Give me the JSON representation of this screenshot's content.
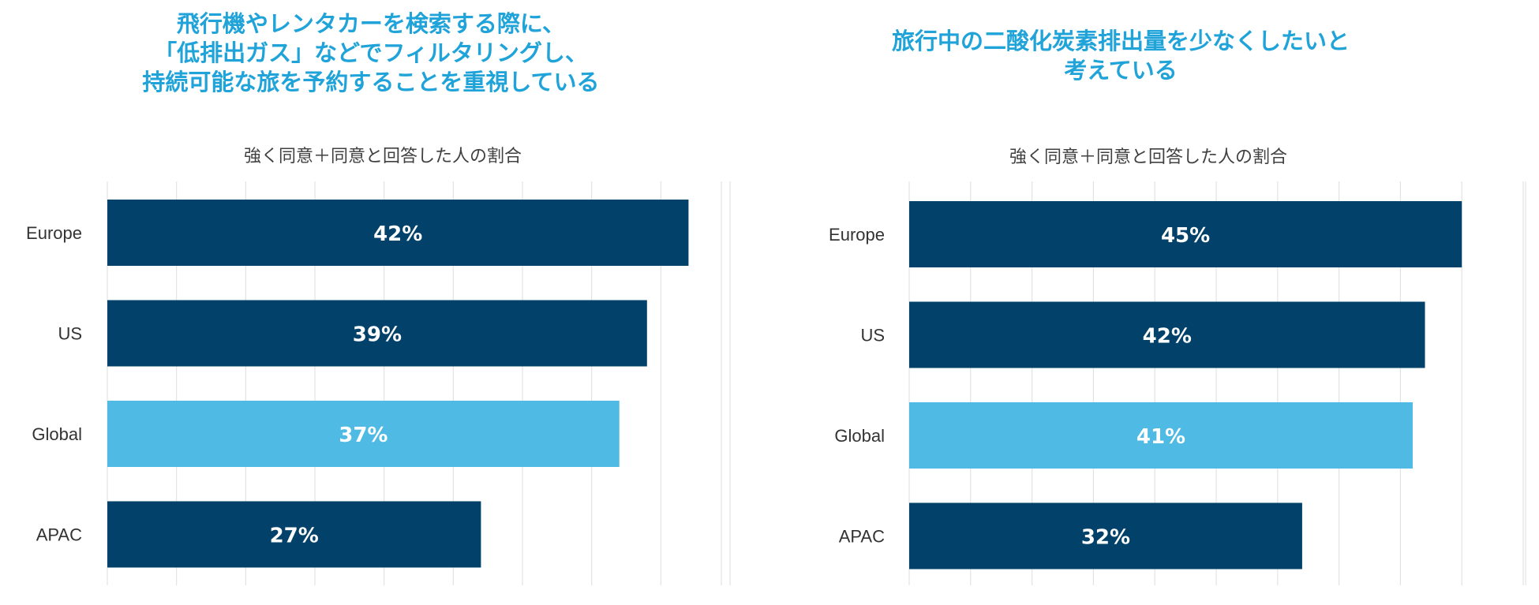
{
  "colors": {
    "title": "#1fa3d9",
    "bar_dark": "#02426a",
    "bar_highlight": "#4fbae4",
    "grid": "#e2e2e2",
    "text": "#333333"
  },
  "chart_data": [
    {
      "type": "bar",
      "orientation": "horizontal",
      "title_lines": [
        "飛行機やレンタカーを検索する際に、",
        "「低排出ガス」などでフィルタリングし、",
        "持続可能な旅を予約することを重視している"
      ],
      "subtitle": "強く同意＋同意と回答した人の割合",
      "categories": [
        "Europe",
        "US",
        "Global",
        "APAC"
      ],
      "values": [
        42,
        39,
        37,
        27
      ],
      "value_labels": [
        "42%",
        "39%",
        "37%",
        "27%"
      ],
      "highlight": "Global",
      "xlim": [
        0,
        45
      ],
      "grid": true
    },
    {
      "type": "bar",
      "orientation": "horizontal",
      "title_lines": [
        "旅行中の二酸化炭素排出量を少なくしたいと",
        "考えている"
      ],
      "subtitle": "強く同意＋同意と回答した人の割合",
      "categories": [
        "Europe",
        "US",
        "Global",
        "APAC"
      ],
      "values": [
        45,
        42,
        41,
        32
      ],
      "value_labels": [
        "45%",
        "42%",
        "41%",
        "32%"
      ],
      "highlight": "Global",
      "xlim": [
        0,
        50
      ],
      "grid": true
    }
  ]
}
